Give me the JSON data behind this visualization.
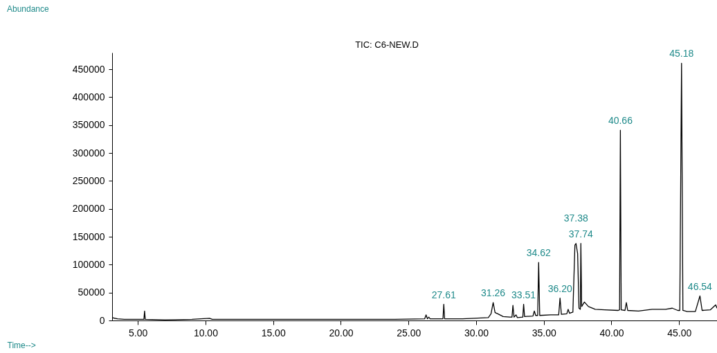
{
  "chart_data": {
    "type": "line",
    "title": "TIC: C6-NEW.D",
    "xlabel": "Time-->",
    "x": [
      3.1,
      3.5,
      4,
      5,
      5.45,
      5.5,
      5.55,
      7,
      9,
      10.3,
      10.5,
      12,
      15,
      20,
      24,
      26.2,
      26.3,
      26.4,
      26.5,
      26.6,
      27.55,
      27.61,
      27.67,
      29,
      30.9,
      31.1,
      31.26,
      31.4,
      31.6,
      32.0,
      32.5,
      32.65,
      32.72,
      32.8,
      32.95,
      33.05,
      33.45,
      33.51,
      33.58,
      34.2,
      34.3,
      34.4,
      34.55,
      34.62,
      34.7,
      35.5,
      36.1,
      36.2,
      36.3,
      36.7,
      36.8,
      36.9,
      37.15,
      37.3,
      37.38,
      37.5,
      37.6,
      37.7,
      37.74,
      37.8,
      38.0,
      38.3,
      38.8,
      39.5,
      40.5,
      40.6,
      40.66,
      40.72,
      41.0,
      41.1,
      41.2,
      42,
      43,
      44,
      44.5,
      44.9,
      45.05,
      45.18,
      45.28,
      45.6,
      46.2,
      46.54,
      46.7,
      47.3,
      47.7,
      47.8
    ],
    "series": [
      {
        "color": "#000000",
        "values": [
          5000,
          3000,
          2000,
          2000,
          2000,
          17000,
          2000,
          1000,
          2000,
          4000,
          2000,
          2000,
          2000,
          2000,
          2000,
          3000,
          10000,
          3000,
          6000,
          3000,
          3000,
          29000,
          3000,
          3000,
          5000,
          12000,
          32000,
          14000,
          12000,
          7000,
          6000,
          6000,
          27000,
          6000,
          10000,
          5000,
          6000,
          29000,
          7000,
          8000,
          17000,
          9000,
          9000,
          104000,
          9000,
          10000,
          10000,
          40000,
          11000,
          12000,
          20000,
          13000,
          15000,
          135000,
          138000,
          120000,
          22000,
          20000,
          138000,
          25000,
          33000,
          25000,
          20000,
          19000,
          18000,
          19000,
          341000,
          19000,
          18000,
          32000,
          18000,
          17000,
          20000,
          20000,
          22000,
          18000,
          18000,
          461000,
          18000,
          16000,
          16000,
          44000,
          18000,
          19000,
          28000,
          22000
        ]
      }
    ],
    "annotations": [
      "Abundance",
      {
        "text": "27.61",
        "x": 27.61,
        "y": 29000
      },
      {
        "text": "31.26",
        "x": 31.26,
        "y": 32000
      },
      {
        "text": "33.51",
        "x": 33.51,
        "y": 29000
      },
      {
        "text": "34.62",
        "x": 34.62,
        "y": 104000
      },
      {
        "text": "36.20",
        "x": 36.2,
        "y": 40000
      },
      {
        "text": "37.38",
        "x": 37.38,
        "y": 138000
      },
      {
        "text": "37.74",
        "x": 37.74,
        "y": 138000
      },
      {
        "text": "40.66",
        "x": 40.66,
        "y": 341000
      },
      {
        "text": "45.18",
        "x": 45.18,
        "y": 461000
      },
      {
        "text": "46.54",
        "x": 46.54,
        "y": 44000
      }
    ],
    "xlim": [
      3.1,
      47.8
    ],
    "ylim": [
      0,
      480000
    ],
    "xticks": [
      {
        "value": 5,
        "label": "5.00"
      },
      {
        "value": 10,
        "label": "10.00"
      },
      {
        "value": 15,
        "label": "15.00"
      },
      {
        "value": 20,
        "label": "20.00"
      },
      {
        "value": 25,
        "label": "25.00"
      },
      {
        "value": 30,
        "label": "30.00"
      },
      {
        "value": 35,
        "label": "35.00"
      },
      {
        "value": 40,
        "label": "40.00"
      },
      {
        "value": 45,
        "label": "45.00"
      }
    ],
    "yticks": [
      0,
      50000,
      100000,
      150000,
      200000,
      250000,
      300000,
      350000,
      400000,
      450000
    ],
    "grid": false,
    "marker": "none",
    "line_style": "solid"
  }
}
